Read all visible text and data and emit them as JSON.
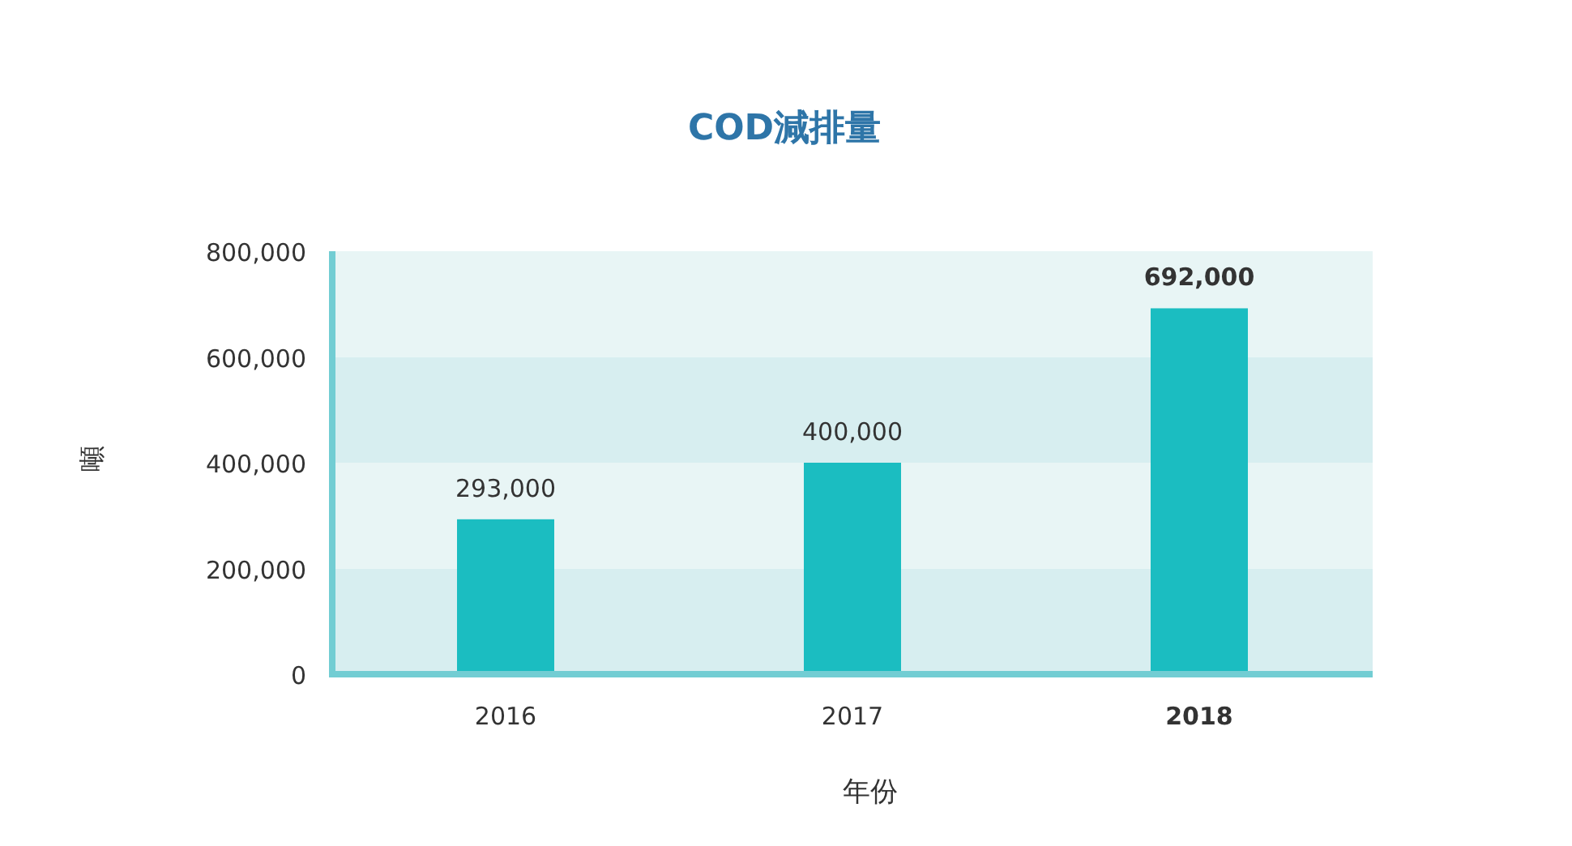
{
  "chart_data": {
    "type": "bar",
    "title": "COD減排量",
    "xlabel": "年份",
    "ylabel": "噸",
    "categories": [
      "2016",
      "2017",
      "2018"
    ],
    "values": [
      293000,
      400000,
      692000
    ],
    "color": "#1bbdc1",
    "value_labels": [
      "293,000",
      "400,000",
      "692,000"
    ],
    "ylim": [
      0,
      800000
    ],
    "yticks": [
      {
        "value": 0,
        "label": "0"
      },
      {
        "value": 200000,
        "label": "200,000"
      },
      {
        "value": 400000,
        "label": "400,000"
      },
      {
        "value": 600000,
        "label": "600,000"
      },
      {
        "value": 800000,
        "label": "800,000"
      }
    ]
  }
}
